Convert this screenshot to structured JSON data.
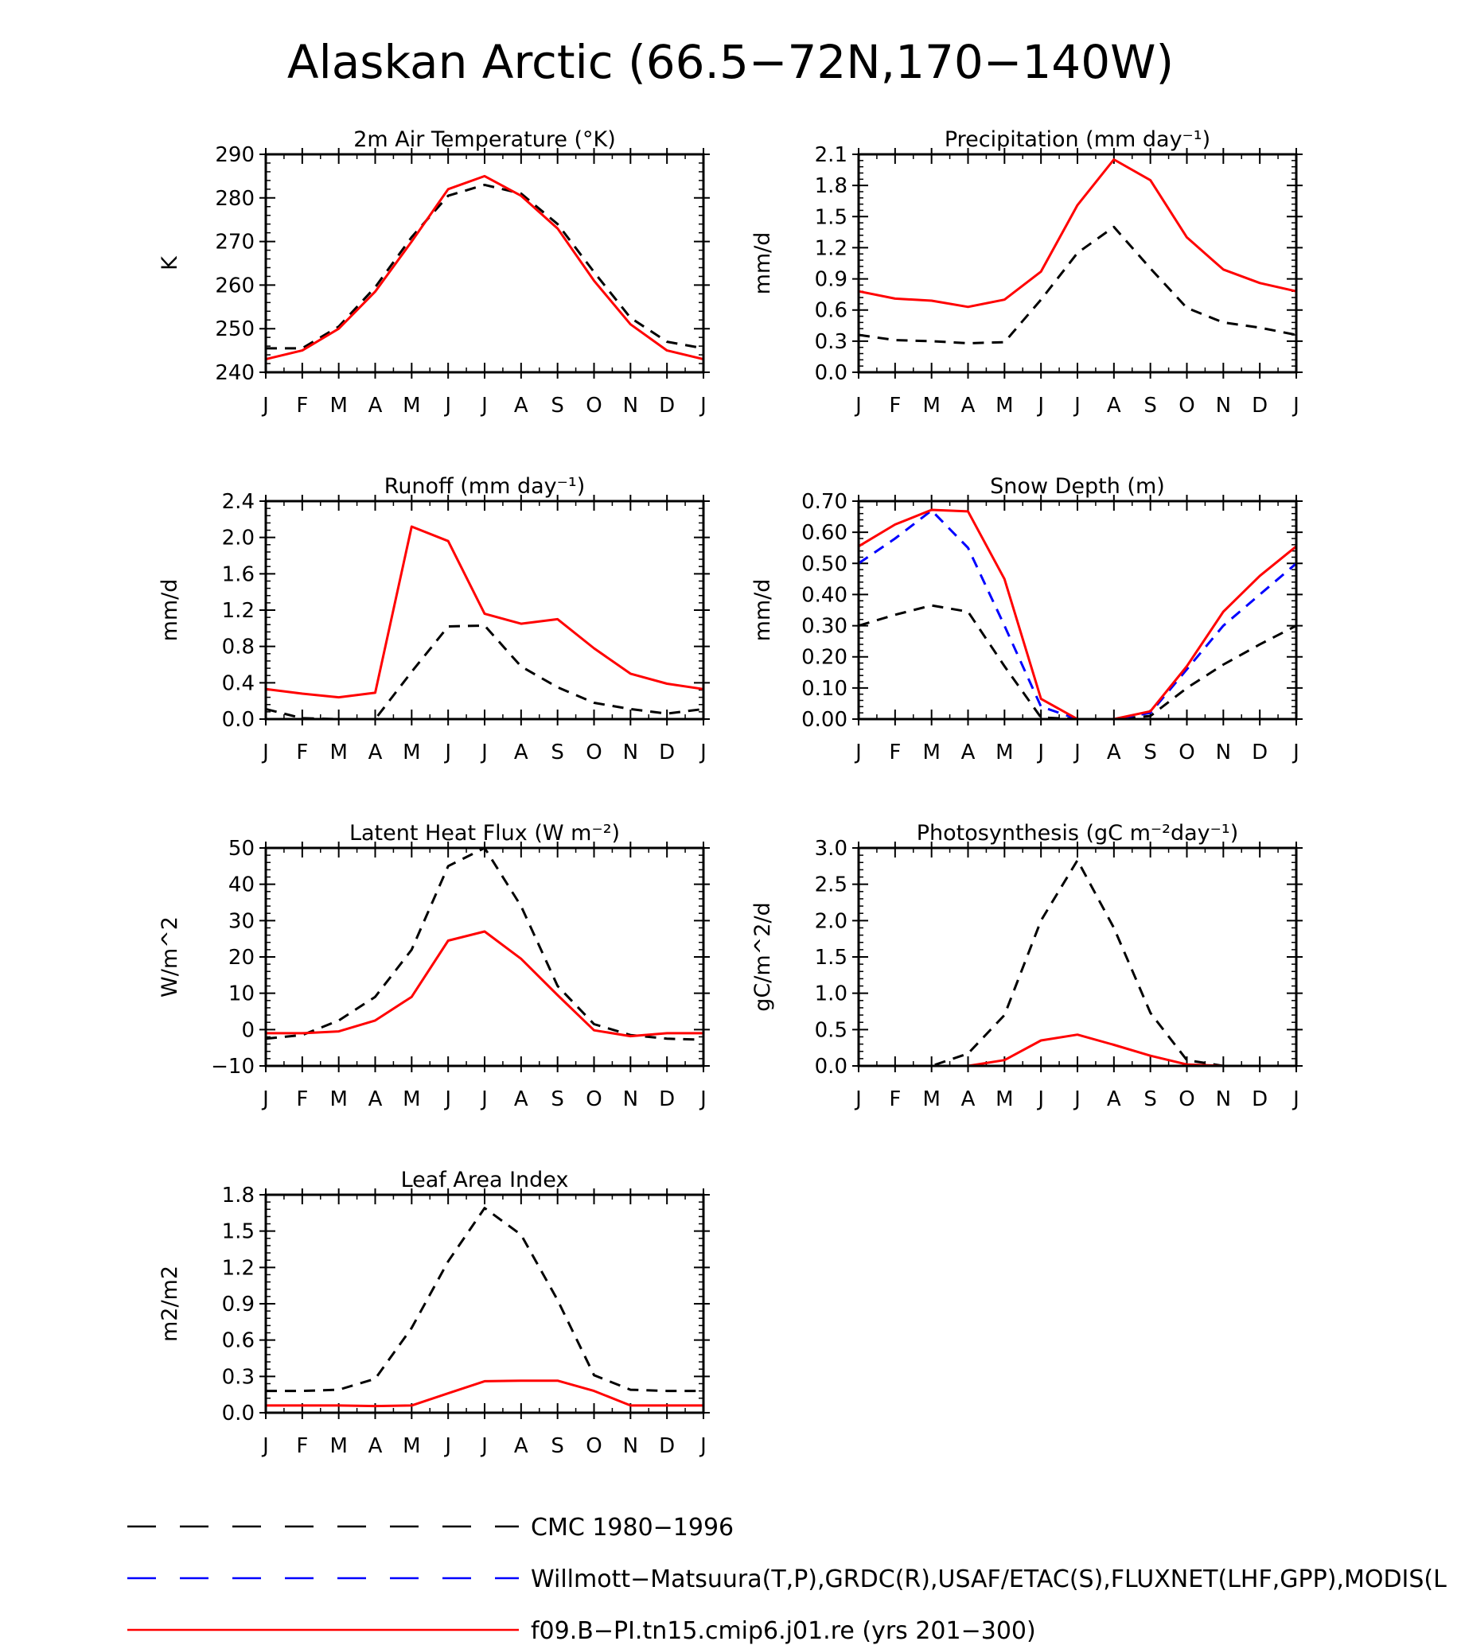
{
  "title": "Alaskan Arctic (66.5−72N,170−140W)",
  "month_labels": [
    "J",
    "F",
    "M",
    "A",
    "M",
    "J",
    "J",
    "A",
    "S",
    "O",
    "N",
    "D",
    "J"
  ],
  "colors": {
    "obs": "#000000",
    "obs2": "#0000ff",
    "model": "#ff0000"
  },
  "legend": [
    {
      "label": "CMC 1980−1996",
      "color": "#000000",
      "dash": true
    },
    {
      "label": "Willmott−Matsuura(T,P),GRDC(R),USAF/ETAC(S),FLUXNET(LHF,GPP),MODIS(L",
      "color": "#0000ff",
      "dash": true
    },
    {
      "label": "f09.B−PI.tn15.cmip6.j01.re (yrs 201−300)",
      "color": "#ff0000",
      "dash": false
    }
  ],
  "chart_data": [
    {
      "type": "line",
      "title": "2m Air Temperature (°K)",
      "ylabel": "K",
      "ylim": [
        240,
        290
      ],
      "yticks": [
        "240",
        "250",
        "260",
        "270",
        "280",
        "290"
      ],
      "x": [
        "J",
        "F",
        "M",
        "A",
        "M",
        "J",
        "J",
        "A",
        "S",
        "O",
        "N",
        "D",
        "J"
      ],
      "series": [
        {
          "color": "#000000",
          "dash": true,
          "values": [
            245.5,
            245.5,
            250.5,
            259.5,
            271,
            280.5,
            283,
            281,
            274,
            263,
            252.5,
            247,
            245.5
          ]
        },
        {
          "color": "#ff0000",
          "dash": false,
          "values": [
            243,
            245,
            250,
            258.5,
            270,
            282,
            285,
            280.5,
            273,
            261,
            251,
            245,
            243
          ]
        }
      ]
    },
    {
      "type": "line",
      "title": "Precipitation (mm day⁻¹)",
      "ylabel": "mm/d",
      "ylim": [
        0,
        2.1
      ],
      "yticks": [
        "0.0",
        "0.3",
        "0.6",
        "0.9",
        "1.2",
        "1.5",
        "1.8",
        "2.1"
      ],
      "x": [
        "J",
        "F",
        "M",
        "A",
        "M",
        "J",
        "J",
        "A",
        "S",
        "O",
        "N",
        "D",
        "J"
      ],
      "series": [
        {
          "color": "#000000",
          "dash": true,
          "values": [
            0.36,
            0.31,
            0.3,
            0.28,
            0.29,
            0.7,
            1.15,
            1.4,
            1.0,
            0.62,
            0.48,
            0.43,
            0.36
          ]
        },
        {
          "color": "#ff0000",
          "dash": false,
          "values": [
            0.78,
            0.71,
            0.69,
            0.63,
            0.7,
            0.97,
            1.61,
            2.05,
            1.85,
            1.3,
            0.99,
            0.86,
            0.78
          ]
        }
      ]
    },
    {
      "type": "line",
      "title": "Runoff (mm day⁻¹)",
      "ylabel": "mm/d",
      "ylim": [
        0,
        2.4
      ],
      "yticks": [
        "0.0",
        "0.4",
        "0.8",
        "1.2",
        "1.6",
        "2.0",
        "2.4"
      ],
      "x": [
        "J",
        "F",
        "M",
        "A",
        "M",
        "J",
        "J",
        "A",
        "S",
        "O",
        "N",
        "D",
        "J"
      ],
      "series": [
        {
          "color": "#000000",
          "dash": true,
          "values": [
            0.11,
            0.01,
            0.0,
            0.0,
            0.52,
            1.02,
            1.03,
            0.58,
            0.35,
            0.18,
            0.11,
            0.06,
            0.11
          ]
        },
        {
          "color": "#ff0000",
          "dash": false,
          "values": [
            0.33,
            0.28,
            0.24,
            0.29,
            2.12,
            1.96,
            1.16,
            1.05,
            1.1,
            0.78,
            0.5,
            0.39,
            0.33
          ]
        }
      ]
    },
    {
      "type": "line",
      "title": "Snow Depth (m)",
      "ylabel": "mm/d",
      "ylim": [
        0,
        0.7
      ],
      "yticks": [
        "0.00",
        "0.10",
        "0.20",
        "0.30",
        "0.40",
        "0.50",
        "0.60",
        "0.70"
      ],
      "x": [
        "J",
        "F",
        "M",
        "A",
        "M",
        "J",
        "J",
        "A",
        "S",
        "O",
        "N",
        "D",
        "J"
      ],
      "series": [
        {
          "color": "#000000",
          "dash": true,
          "values": [
            0.3,
            0.335,
            0.365,
            0.345,
            0.17,
            0.005,
            0.0,
            0.0,
            0.01,
            0.1,
            0.175,
            0.24,
            0.3
          ]
        },
        {
          "color": "#0000ff",
          "dash": true,
          "values": [
            0.5,
            0.58,
            0.67,
            0.55,
            0.3,
            0.04,
            0.0,
            0.0,
            0.02,
            0.16,
            0.3,
            0.4,
            0.5
          ]
        },
        {
          "color": "#ff0000",
          "dash": false,
          "values": [
            0.555,
            0.625,
            0.672,
            0.667,
            0.45,
            0.065,
            0.0,
            0.0,
            0.025,
            0.17,
            0.345,
            0.46,
            0.555
          ]
        }
      ]
    },
    {
      "type": "line",
      "title": "Latent Heat Flux (W m⁻²)",
      "ylabel": "W/m^2",
      "ylim": [
        -10,
        50
      ],
      "yticks": [
        "−10",
        "0",
        "10",
        "20",
        "30",
        "40",
        "50"
      ],
      "x": [
        "J",
        "F",
        "M",
        "A",
        "M",
        "J",
        "J",
        "A",
        "S",
        "O",
        "N",
        "D",
        "J"
      ],
      "series": [
        {
          "color": "#000000",
          "dash": true,
          "values": [
            -2.5,
            -1.5,
            2.5,
            9,
            22,
            45,
            50,
            34,
            12,
            1.5,
            -1.5,
            -2.5,
            -2.8
          ]
        },
        {
          "color": "#ff0000",
          "dash": false,
          "values": [
            -1,
            -1,
            -0.5,
            2.5,
            9,
            24.5,
            27,
            19.5,
            9.5,
            -0.2,
            -1.8,
            -1,
            -1
          ]
        }
      ]
    },
    {
      "type": "line",
      "title": "Photosynthesis (gC m⁻²day⁻¹)",
      "ylabel": "gC/m^2/d",
      "ylim": [
        0,
        3.0
      ],
      "yticks": [
        "0.0",
        "0.5",
        "1.0",
        "1.5",
        "2.0",
        "2.5",
        "3.0"
      ],
      "x": [
        "J",
        "F",
        "M",
        "A",
        "M",
        "J",
        "J",
        "A",
        "S",
        "O",
        "N",
        "D",
        "J"
      ],
      "series": [
        {
          "color": "#000000",
          "dash": true,
          "values": [
            0.0,
            0.0,
            0.0,
            0.17,
            0.7,
            2.0,
            2.83,
            1.9,
            0.73,
            0.08,
            0.0,
            0.0,
            0.0
          ]
        },
        {
          "color": "#ff0000",
          "dash": false,
          "values": [
            0.0,
            0.0,
            0.0,
            0.0,
            0.08,
            0.35,
            0.43,
            0.29,
            0.14,
            0.02,
            0.0,
            0.0,
            0.0
          ]
        }
      ]
    },
    {
      "type": "line",
      "title": "Leaf Area Index",
      "ylabel": "m2/m2",
      "ylim": [
        0,
        1.8
      ],
      "yticks": [
        "0.0",
        "0.3",
        "0.6",
        "0.9",
        "1.2",
        "1.5",
        "1.8"
      ],
      "x": [
        "J",
        "F",
        "M",
        "A",
        "M",
        "J",
        "J",
        "A",
        "S",
        "O",
        "N",
        "D",
        "J"
      ],
      "series": [
        {
          "color": "#000000",
          "dash": true,
          "values": [
            0.18,
            0.18,
            0.19,
            0.28,
            0.7,
            1.25,
            1.69,
            1.47,
            0.93,
            0.31,
            0.19,
            0.18,
            0.18
          ]
        },
        {
          "color": "#ff0000",
          "dash": false,
          "values": [
            0.06,
            0.06,
            0.06,
            0.055,
            0.06,
            0.16,
            0.26,
            0.265,
            0.265,
            0.18,
            0.06,
            0.06,
            0.06
          ]
        }
      ]
    }
  ]
}
